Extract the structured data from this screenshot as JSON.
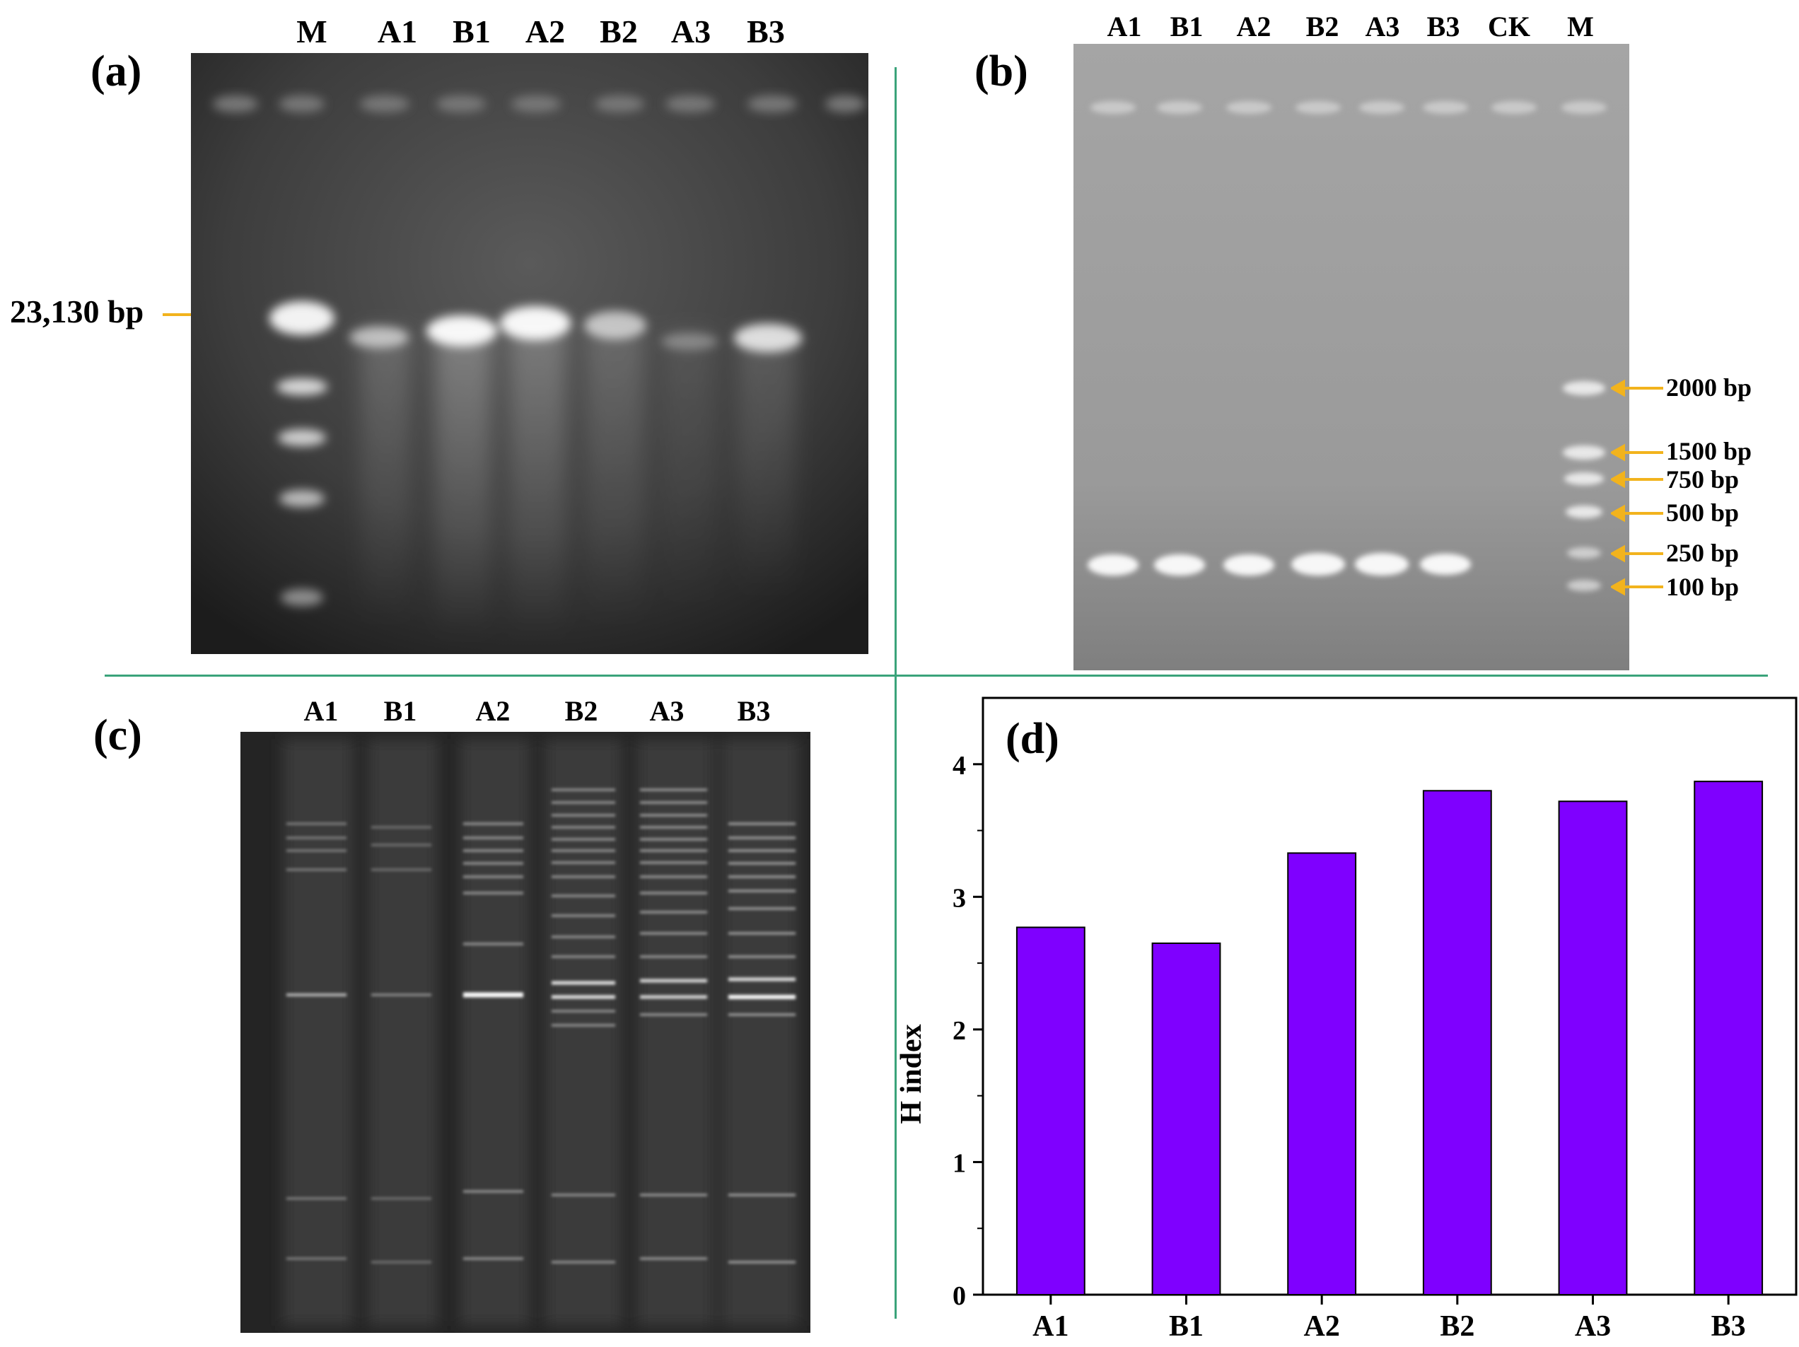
{
  "panel_a": {
    "letter": "(a)",
    "lanes": [
      "M",
      "A1",
      "B1",
      "A2",
      "B2",
      "A3",
      "B3"
    ],
    "marker": "23,130 bp"
  },
  "panel_b": {
    "letter": "(b)",
    "lanes": [
      "A1",
      "B1",
      "A2",
      "B2",
      "A3",
      "B3",
      "CK",
      "M"
    ],
    "markers": [
      "2000 bp",
      "1500 bp",
      "750 bp",
      "500 bp",
      "250 bp",
      "100 bp"
    ]
  },
  "panel_c": {
    "letter": "(c)",
    "lanes": [
      "A1",
      "B1",
      "A2",
      "B2",
      "A3",
      "B3"
    ]
  },
  "panel_d": {
    "letter": "(d)"
  },
  "colors": {
    "arrow": "#f2b31d",
    "divider": "#3aa37a",
    "bar": "#7f00ff"
  },
  "chart_data": {
    "type": "bar",
    "categories": [
      "A1",
      "B1",
      "A2",
      "B2",
      "A3",
      "B3"
    ],
    "values": [
      2.77,
      2.65,
      3.33,
      3.8,
      3.72,
      3.87
    ],
    "xlabel": "",
    "ylabel": "H index",
    "ylim": [
      0,
      4.5
    ],
    "yticks": [
      0,
      1,
      2,
      3,
      4
    ],
    "grid": false
  }
}
